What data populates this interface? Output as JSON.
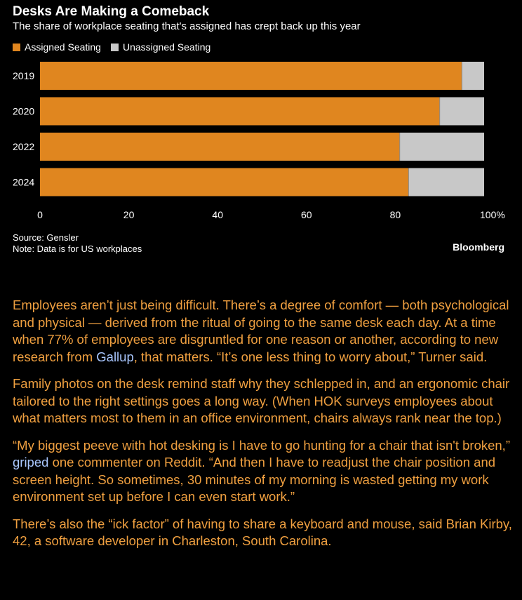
{
  "chart_data": {
    "type": "bar",
    "orientation": "horizontal",
    "stacked": true,
    "title": "Desks Are Making a Comeback",
    "subtitle": "The share of workplace seating that's assigned has crept back up this year",
    "categories": [
      "2019",
      "2020",
      "2022",
      "2024"
    ],
    "series": [
      {
        "name": "Assigned Seating",
        "color": "#e0861f",
        "values": [
          95,
          90,
          81,
          83
        ]
      },
      {
        "name": "Unassigned Seating",
        "color": "#c8c8c8",
        "values": [
          5,
          10,
          19,
          17
        ]
      }
    ],
    "xlim": [
      0,
      100
    ],
    "xticks": [
      "0",
      "20",
      "40",
      "60",
      "80",
      "100%"
    ],
    "legend_position": "top-left",
    "grid": false
  },
  "footer": {
    "source": "Source: Gensler",
    "note": "Note: Data is for US workplaces",
    "brand": "Bloomberg"
  },
  "article": {
    "p1_a": "Employees aren’t just being difficult. There’s a degree of comfort — both psychological and physical — derived from the ritual of going to the same desk each day. At a time when 77% of employees are disgruntled for one reason or another, according to new research from ",
    "p1_link": "Gallup",
    "p1_b": ", that matters. “It’s one less thing to worry about,” Turner said.",
    "p2": "Family photos on the desk remind staff why they schlepped in, and an ergonomic chair tailored to the right settings goes a long way. (When HOK surveys employees about what matters most to them in an office environment, chairs always rank near the top.)",
    "p3_a": "“My biggest peeve with hot desking is I have to go hunting for a chair that isn't broken,” ",
    "p3_link": "griped",
    "p3_b": " one commenter on Reddit. “And then I have to readjust the chair position and screen height. So sometimes, 30 minutes of my morning is wasted getting my work environment set up before I can even start work.”",
    "p4": "There’s also the “ick factor” of having to share a keyboard and mouse, said Brian Kirby, 42, a software developer in Charleston, South Carolina."
  }
}
